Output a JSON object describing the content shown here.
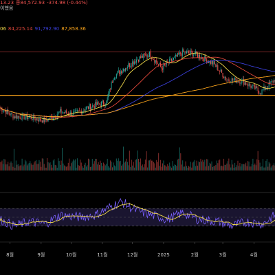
{
  "legend": {
    "ohlc_prefix": "13.23",
    "close_label": "종84,572.93",
    "change": "-374.98 (-0.44%)",
    "ma_prefix": "06",
    "ma_values": [
      "84,225.14",
      "91,792.90",
      "87,858.36"
    ],
    "corner_text": "이했음"
  },
  "colors": {
    "up": "#26a69a",
    "down": "#ef5350",
    "ma_short": "#f0d94a",
    "ma_mid": "#e0473a",
    "ma_long": "#3a3fd8",
    "ma_200": "#f7a21b",
    "rsi": "#7b61ff",
    "rsi_ma": "#f0d94a",
    "support_line": "#f7a21b",
    "resistance_line": "#b23a3a"
  },
  "x_axis": {
    "labels": [
      "8월",
      "9월",
      "10월",
      "11월",
      "12월",
      "2025",
      "2월",
      "3월",
      "4월"
    ]
  },
  "chart_data": {
    "type": "candlestick",
    "x_range": [
      "2024-07-22",
      "2025-04-22"
    ],
    "horizontal_lines": {
      "support": 74.8,
      "resistance": 105.3
    },
    "price_key_points": [
      [
        "2024-07-22",
        66.0
      ],
      [
        "2024-08-05",
        60.0
      ],
      [
        "2024-08-20",
        59.5
      ],
      [
        "2024-09-05",
        57.0
      ],
      [
        "2024-09-20",
        63.0
      ],
      [
        "2024-10-05",
        62.0
      ],
      [
        "2024-10-20",
        67.0
      ],
      [
        "2024-11-05",
        70.0
      ],
      [
        "2024-11-12",
        88.0
      ],
      [
        "2024-11-25",
        95.0
      ],
      [
        "2024-12-05",
        100.0
      ],
      [
        "2024-12-18",
        104.0
      ],
      [
        "2024-12-30",
        94.0
      ],
      [
        "2025-01-20",
        105.0
      ],
      [
        "2025-02-01",
        104.0
      ],
      [
        "2025-02-20",
        97.0
      ],
      [
        "2025-03-05",
        86.0
      ],
      [
        "2025-03-20",
        85.0
      ],
      [
        "2025-04-08",
        77.0
      ],
      [
        "2025-04-22",
        86.0
      ]
    ],
    "rsi_range": [
      0,
      100
    ],
    "rsi_key_points": [
      [
        "2024-07-22",
        45
      ],
      [
        "2024-08-05",
        30
      ],
      [
        "2024-08-20",
        40
      ],
      [
        "2024-09-05",
        35
      ],
      [
        "2024-09-20",
        55
      ],
      [
        "2024-10-10",
        50
      ],
      [
        "2024-10-25",
        55
      ],
      [
        "2024-11-10",
        75
      ],
      [
        "2024-11-20",
        85
      ],
      [
        "2024-12-05",
        65
      ],
      [
        "2024-12-20",
        55
      ],
      [
        "2025-01-05",
        45
      ],
      [
        "2025-01-20",
        60
      ],
      [
        "2025-02-05",
        45
      ],
      [
        "2025-02-25",
        40
      ],
      [
        "2025-03-10",
        30
      ],
      [
        "2025-03-25",
        40
      ],
      [
        "2025-04-10",
        35
      ],
      [
        "2025-04-22",
        55
      ]
    ]
  }
}
